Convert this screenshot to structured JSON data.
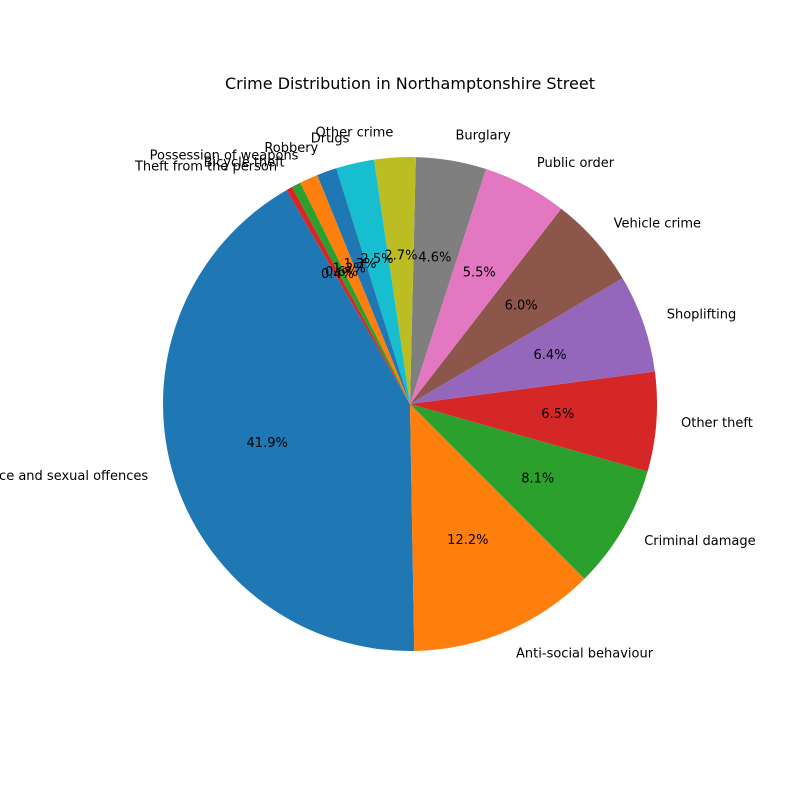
{
  "chart_data": {
    "type": "pie",
    "title": "Crime Distribution in Northamptonshire Street",
    "start_angle_deg": 120,
    "direction": "counterclockwise",
    "legend": "none",
    "slices": [
      {
        "label": "Violence and sexual offences",
        "percent": 41.9,
        "pct_text": "41.9%",
        "color": "#1f77b4"
      },
      {
        "label": "Anti-social behaviour",
        "percent": 12.2,
        "pct_text": "12.2%",
        "color": "#ff7f0e"
      },
      {
        "label": "Criminal damage",
        "percent": 8.1,
        "pct_text": "8.1%",
        "color": "#2ca02c"
      },
      {
        "label": "Other theft",
        "percent": 6.5,
        "pct_text": "6.5%",
        "color": "#d62728"
      },
      {
        "label": "Shoplifting",
        "percent": 6.4,
        "pct_text": "6.4%",
        "color": "#9467bd"
      },
      {
        "label": "Vehicle crime",
        "percent": 6.0,
        "pct_text": "6.0%",
        "color": "#8c564b"
      },
      {
        "label": "Public order",
        "percent": 5.5,
        "pct_text": "5.5%",
        "color": "#e377c2"
      },
      {
        "label": "Burglary",
        "percent": 4.6,
        "pct_text": "4.6%",
        "color": "#7f7f7f"
      },
      {
        "label": "Other crime",
        "percent": 2.7,
        "pct_text": "2.7%",
        "color": "#bcbd22"
      },
      {
        "label": "Drugs",
        "percent": 2.5,
        "pct_text": "2.5%",
        "color": "#17becf"
      },
      {
        "label": "Robbery",
        "percent": 1.3,
        "pct_text": "1.3%",
        "color": "#1f77b4"
      },
      {
        "label": "Possession of weapons",
        "percent": 1.2,
        "pct_text": "1.2%",
        "color": "#ff7f0e"
      },
      {
        "label": "Bicycle theft",
        "percent": 0.6,
        "pct_text": "0.6%",
        "color": "#2ca02c"
      },
      {
        "label": "Theft from the person",
        "percent": 0.4,
        "pct_text": "0.4%",
        "color": "#d62728"
      }
    ]
  }
}
